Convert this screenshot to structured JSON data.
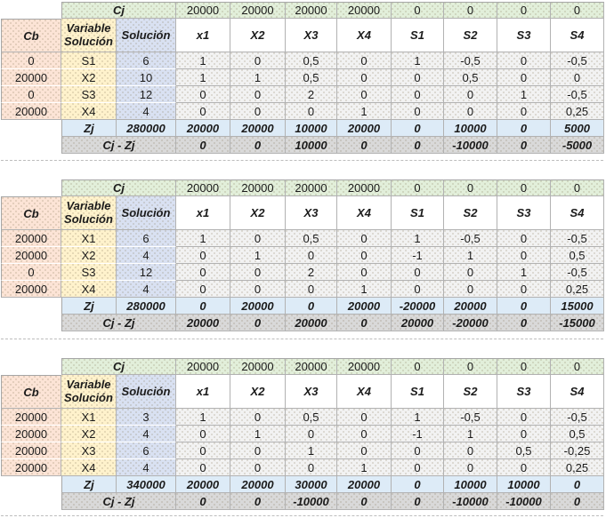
{
  "sheet": {
    "labels": {
      "cj": "Cj",
      "cb": "Cb",
      "variable_line1": "Variable",
      "variable_line2": "Solución",
      "solucion": "Solución",
      "zj": "Zj",
      "cj_minus_zj": "Cj - Zj"
    },
    "variable_headers": [
      "x1",
      "X2",
      "X3",
      "X4",
      "S1",
      "S2",
      "S3",
      "S4"
    ],
    "colors": {
      "cj_row": "#e2efda",
      "cb_col": "#fce4d6",
      "variable_col": "#fff2cc",
      "solucion_col": "#d9e1f2",
      "zj_row": "#ddebf7",
      "cjzj_row": "#d9d9d9",
      "matrix_cell": "#f2f2f2"
    }
  },
  "tables": [
    {
      "cj_values": [
        "20000",
        "20000",
        "20000",
        "20000",
        "0",
        "0",
        "0",
        "0"
      ],
      "rows": [
        {
          "cb": "0",
          "variable": "S1",
          "solucion": "6",
          "vals": [
            "1",
            "0",
            "0,5",
            "0",
            "1",
            "-0,5",
            "0",
            "-0,5"
          ]
        },
        {
          "cb": "20000",
          "variable": "X2",
          "solucion": "10",
          "vals": [
            "1",
            "1",
            "0,5",
            "0",
            "0",
            "0,5",
            "0",
            "0"
          ]
        },
        {
          "cb": "0",
          "variable": "S3",
          "solucion": "12",
          "vals": [
            "0",
            "0",
            "2",
            "0",
            "0",
            "0",
            "1",
            "-0,5"
          ]
        },
        {
          "cb": "20000",
          "variable": "X4",
          "solucion": "4",
          "vals": [
            "0",
            "0",
            "0",
            "1",
            "0",
            "0",
            "0",
            "0,25"
          ]
        }
      ],
      "zj": {
        "solucion": "280000",
        "vals": [
          "20000",
          "20000",
          "10000",
          "20000",
          "0",
          "10000",
          "0",
          "5000"
        ]
      },
      "cj_minus_zj": {
        "vals": [
          "0",
          "0",
          "10000",
          "0",
          "0",
          "-10000",
          "0",
          "-5000"
        ]
      }
    },
    {
      "cj_values": [
        "20000",
        "20000",
        "20000",
        "20000",
        "0",
        "0",
        "0",
        "0"
      ],
      "rows": [
        {
          "cb": "20000",
          "variable": "X1",
          "solucion": "6",
          "vals": [
            "1",
            "0",
            "0,5",
            "0",
            "1",
            "-0,5",
            "0",
            "-0,5"
          ]
        },
        {
          "cb": "20000",
          "variable": "X2",
          "solucion": "4",
          "vals": [
            "0",
            "1",
            "0",
            "0",
            "-1",
            "1",
            "0",
            "0,5"
          ]
        },
        {
          "cb": "0",
          "variable": "S3",
          "solucion": "12",
          "vals": [
            "0",
            "0",
            "2",
            "0",
            "0",
            "0",
            "1",
            "-0,5"
          ]
        },
        {
          "cb": "20000",
          "variable": "X4",
          "solucion": "4",
          "vals": [
            "0",
            "0",
            "0",
            "1",
            "0",
            "0",
            "0",
            "0,25"
          ]
        }
      ],
      "zj": {
        "solucion": "280000",
        "vals": [
          "0",
          "20000",
          "0",
          "20000",
          "-20000",
          "20000",
          "0",
          "15000"
        ]
      },
      "cj_minus_zj": {
        "vals": [
          "20000",
          "0",
          "20000",
          "0",
          "20000",
          "-20000",
          "0",
          "-15000"
        ]
      }
    },
    {
      "cj_values": [
        "20000",
        "20000",
        "20000",
        "20000",
        "0",
        "0",
        "0",
        "0"
      ],
      "rows": [
        {
          "cb": "20000",
          "variable": "X1",
          "solucion": "3",
          "vals": [
            "1",
            "0",
            "0,5",
            "0",
            "1",
            "-0,5",
            "0",
            "-0,5"
          ]
        },
        {
          "cb": "20000",
          "variable": "X2",
          "solucion": "4",
          "vals": [
            "0",
            "1",
            "0",
            "0",
            "-1",
            "1",
            "0",
            "0,5"
          ]
        },
        {
          "cb": "20000",
          "variable": "X3",
          "solucion": "6",
          "vals": [
            "0",
            "0",
            "1",
            "0",
            "0",
            "0",
            "0,5",
            "-0,25"
          ]
        },
        {
          "cb": "20000",
          "variable": "X4",
          "solucion": "4",
          "vals": [
            "0",
            "0",
            "0",
            "1",
            "0",
            "0",
            "0",
            "0,25"
          ]
        }
      ],
      "zj": {
        "solucion": "340000",
        "vals": [
          "20000",
          "20000",
          "30000",
          "20000",
          "0",
          "10000",
          "10000",
          "0"
        ]
      },
      "cj_minus_zj": {
        "vals": [
          "0",
          "0",
          "-10000",
          "0",
          "0",
          "-10000",
          "-10000",
          "0"
        ]
      }
    }
  ]
}
